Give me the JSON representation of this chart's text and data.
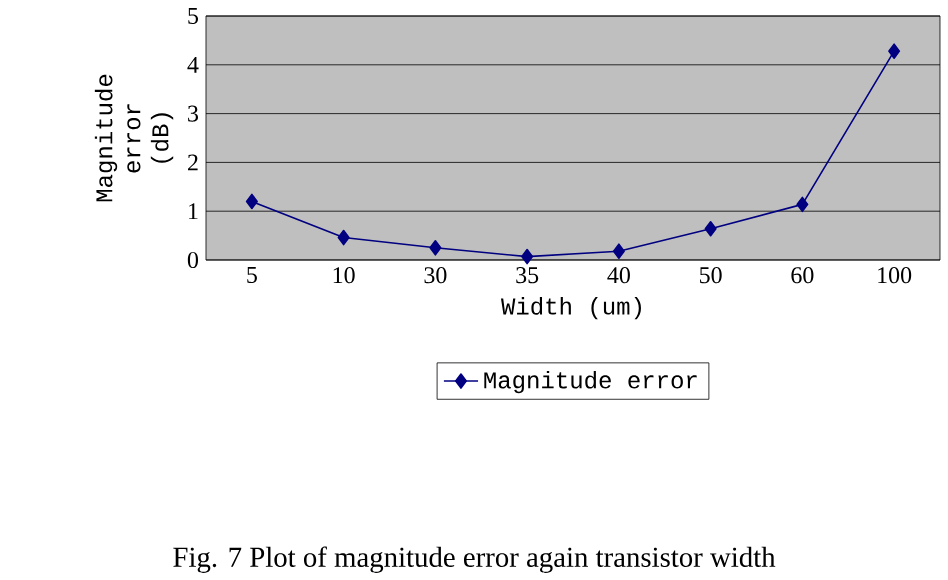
{
  "chart_data": {
    "type": "line",
    "xlabel": "Width (um)",
    "ylabel": "Magnitude error (dB)",
    "categories": [
      "5",
      "10",
      "30",
      "35",
      "40",
      "50",
      "60",
      "100"
    ],
    "series": [
      {
        "name": "Magnitude error",
        "color": "#000080",
        "values": [
          1.2,
          0.46,
          0.25,
          0.07,
          0.18,
          0.64,
          1.14,
          4.28
        ]
      }
    ],
    "ylim": [
      0,
      5
    ],
    "yticks": [
      0,
      1,
      2,
      3,
      4,
      5
    ],
    "grid": "y",
    "legend": "bottom",
    "marker": "diamond",
    "line_style": "solid",
    "annotations": [
      "Fig. 7 Plot of magnitude error again transistor width"
    ]
  }
}
